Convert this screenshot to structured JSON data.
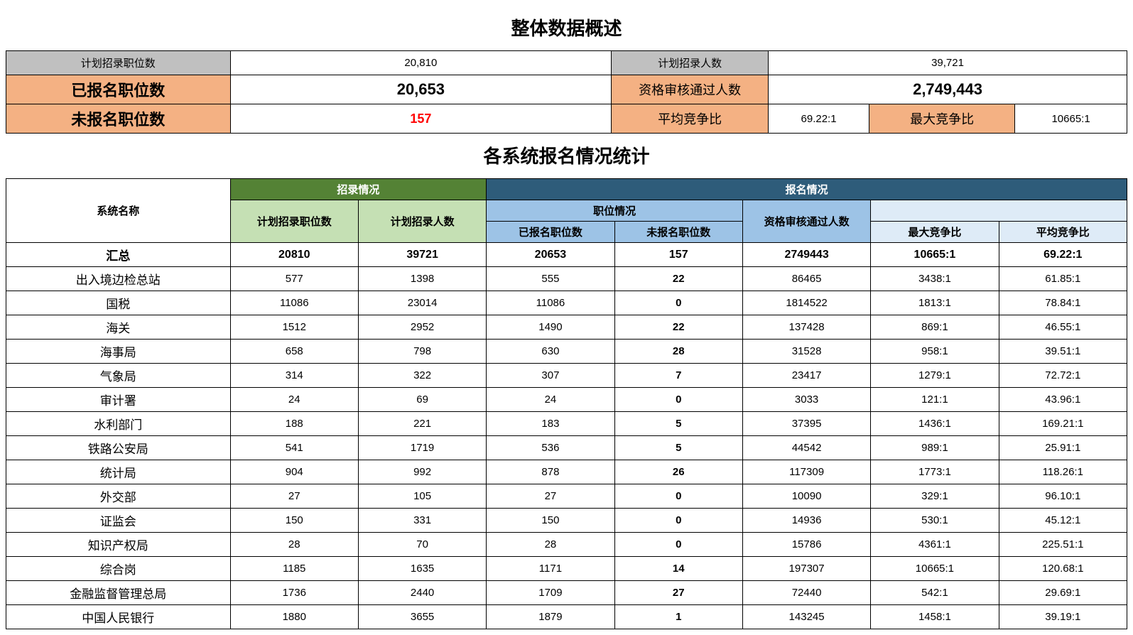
{
  "titles": {
    "overview": "整体数据概述",
    "detail": "各系统报名情况统计"
  },
  "overview": {
    "planned_positions_label": "计划招录职位数",
    "planned_positions_value": "20,810",
    "planned_people_label": "计划招录人数",
    "planned_people_value": "39,721",
    "applied_positions_label": "已报名职位数",
    "applied_positions_value": "20,653",
    "passed_review_label": "资格审核通过人数",
    "passed_review_value": "2,749,443",
    "unapplied_positions_label": "未报名职位数",
    "unapplied_positions_value": "157",
    "avg_ratio_label": "平均竞争比",
    "avg_ratio_value": "69.22:1",
    "max_ratio_label": "最大竞争比",
    "max_ratio_value": "10665:1"
  },
  "detail_headers": {
    "system_name": "系统名称",
    "recruit_group": "招录情况",
    "apply_group": "报名情况",
    "planned_positions": "计划招录职位数",
    "planned_people": "计划招录人数",
    "position_group": "职位情况",
    "applied_positions": "已报名职位数",
    "unapplied_positions": "未报名职位数",
    "passed_review": "资格审核通过人数",
    "max_ratio": "最大竞争比",
    "avg_ratio": "平均竞争比"
  },
  "detail_rows": [
    {
      "name": "汇总",
      "planned_pos": "20810",
      "planned_ppl": "39721",
      "applied_pos": "20653",
      "unapplied_pos": "157",
      "passed": "2749443",
      "max_ratio": "10665:1",
      "avg_ratio": "69.22:1",
      "is_summary": true
    },
    {
      "name": "出入境边检总站",
      "planned_pos": "577",
      "planned_ppl": "1398",
      "applied_pos": "555",
      "unapplied_pos": "22",
      "passed": "86465",
      "max_ratio": "3438:1",
      "avg_ratio": "61.85:1"
    },
    {
      "name": "国税",
      "planned_pos": "11086",
      "planned_ppl": "23014",
      "applied_pos": "11086",
      "unapplied_pos": "0",
      "passed": "1814522",
      "max_ratio": "1813:1",
      "avg_ratio": "78.84:1"
    },
    {
      "name": "海关",
      "planned_pos": "1512",
      "planned_ppl": "2952",
      "applied_pos": "1490",
      "unapplied_pos": "22",
      "passed": "137428",
      "max_ratio": "869:1",
      "avg_ratio": "46.55:1"
    },
    {
      "name": "海事局",
      "planned_pos": "658",
      "planned_ppl": "798",
      "applied_pos": "630",
      "unapplied_pos": "28",
      "passed": "31528",
      "max_ratio": "958:1",
      "avg_ratio": "39.51:1"
    },
    {
      "name": "气象局",
      "planned_pos": "314",
      "planned_ppl": "322",
      "applied_pos": "307",
      "unapplied_pos": "7",
      "passed": "23417",
      "max_ratio": "1279:1",
      "avg_ratio": "72.72:1"
    },
    {
      "name": "审计署",
      "planned_pos": "24",
      "planned_ppl": "69",
      "applied_pos": "24",
      "unapplied_pos": "0",
      "passed": "3033",
      "max_ratio": "121:1",
      "avg_ratio": "43.96:1"
    },
    {
      "name": "水利部门",
      "planned_pos": "188",
      "planned_ppl": "221",
      "applied_pos": "183",
      "unapplied_pos": "5",
      "passed": "37395",
      "max_ratio": "1436:1",
      "avg_ratio": "169.21:1"
    },
    {
      "name": "铁路公安局",
      "planned_pos": "541",
      "planned_ppl": "1719",
      "applied_pos": "536",
      "unapplied_pos": "5",
      "passed": "44542",
      "max_ratio": "989:1",
      "avg_ratio": "25.91:1"
    },
    {
      "name": "统计局",
      "planned_pos": "904",
      "planned_ppl": "992",
      "applied_pos": "878",
      "unapplied_pos": "26",
      "passed": "117309",
      "max_ratio": "1773:1",
      "avg_ratio": "118.26:1"
    },
    {
      "name": "外交部",
      "planned_pos": "27",
      "planned_ppl": "105",
      "applied_pos": "27",
      "unapplied_pos": "0",
      "passed": "10090",
      "max_ratio": "329:1",
      "avg_ratio": "96.10:1"
    },
    {
      "name": "证监会",
      "planned_pos": "150",
      "planned_ppl": "331",
      "applied_pos": "150",
      "unapplied_pos": "0",
      "passed": "14936",
      "max_ratio": "530:1",
      "avg_ratio": "45.12:1"
    },
    {
      "name": "知识产权局",
      "planned_pos": "28",
      "planned_ppl": "70",
      "applied_pos": "28",
      "unapplied_pos": "0",
      "passed": "15786",
      "max_ratio": "4361:1",
      "avg_ratio": "225.51:1"
    },
    {
      "name": "综合岗",
      "planned_pos": "1185",
      "planned_ppl": "1635",
      "applied_pos": "1171",
      "unapplied_pos": "14",
      "passed": "197307",
      "max_ratio": "10665:1",
      "avg_ratio": "120.68:1"
    },
    {
      "name": "金融监督管理总局",
      "planned_pos": "1736",
      "planned_ppl": "2440",
      "applied_pos": "1709",
      "unapplied_pos": "27",
      "passed": "72440",
      "max_ratio": "542:1",
      "avg_ratio": "29.69:1"
    },
    {
      "name": "中国人民银行",
      "planned_pos": "1880",
      "planned_ppl": "3655",
      "applied_pos": "1879",
      "unapplied_pos": "1",
      "passed": "143245",
      "max_ratio": "1458:1",
      "avg_ratio": "39.19:1"
    }
  ],
  "colors": {
    "gray": "#c0c0c0",
    "orange": "#f4b183",
    "dark_green": "#548235",
    "light_green": "#c5e0b4",
    "dark_blue": "#2e5c7a",
    "mid_blue": "#9dc3e6",
    "light_blue": "#deebf7",
    "red": "#ff0000",
    "border": "#000000"
  }
}
